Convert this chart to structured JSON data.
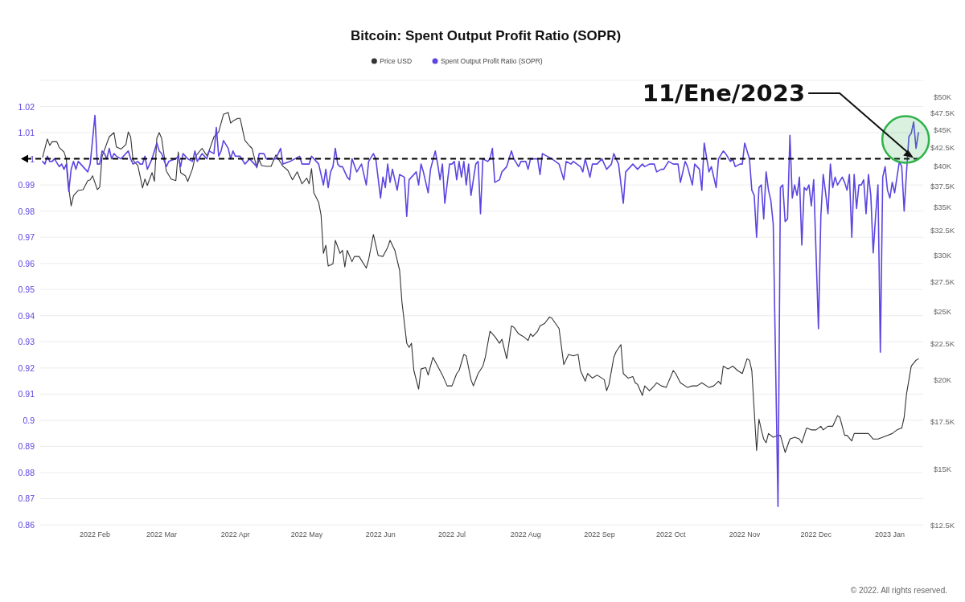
{
  "chart_data": {
    "type": "line",
    "title": "Bitcoin: Spent Output Profit Ratio (SOPR)",
    "xlim": [
      "2022-01-09",
      "2023-01-15"
    ],
    "xticks": [
      {
        "value": "2022-02-01",
        "label": "2022 Feb"
      },
      {
        "value": "2022-03-01",
        "label": "2022 Mar"
      },
      {
        "value": "2022-04-01",
        "label": "2022 Apr"
      },
      {
        "value": "2022-05-01",
        "label": "2022 May"
      },
      {
        "value": "2022-06-01",
        "label": "2022 Jun"
      },
      {
        "value": "2022-07-01",
        "label": "2022 Jul"
      },
      {
        "value": "2022-08-01",
        "label": "2022 Aug"
      },
      {
        "value": "2022-09-01",
        "label": "2022 Sep"
      },
      {
        "value": "2022-10-01",
        "label": "2022 Oct"
      },
      {
        "value": "2022-11-01",
        "label": "2022 Nov"
      },
      {
        "value": "2022-12-01",
        "label": "2022 Dec"
      },
      {
        "value": "2023-01-01",
        "label": "2023 Jan"
      }
    ],
    "ylim": [
      0.86,
      1.03
    ],
    "yticks": [
      0.86,
      0.87,
      0.88,
      0.89,
      0.9,
      0.91,
      0.92,
      0.93,
      0.94,
      0.95,
      0.96,
      0.97,
      0.98,
      0.99,
      1,
      1.01,
      1.02,
      {
        "value": 1.03,
        "label": null
      }
    ],
    "y2lim": [
      12500,
      52700
    ],
    "y2ticks": [
      {
        "value": 12500,
        "label": "$12.5K"
      },
      {
        "value": 15000,
        "label": "$15K"
      },
      {
        "value": 17500,
        "label": "$17.5K"
      },
      {
        "value": 20000,
        "label": "$20K"
      },
      {
        "value": 22500,
        "label": "$22.5K"
      },
      {
        "value": 25000,
        "label": "$25K"
      },
      {
        "value": 27500,
        "label": "$27.5K"
      },
      {
        "value": 30000,
        "label": "$30K"
      },
      {
        "value": 32500,
        "label": "$32.5K"
      },
      {
        "value": 35000,
        "label": "$35K"
      },
      {
        "value": 37500,
        "label": "$37.5K"
      },
      {
        "value": 40000,
        "label": "$40K"
      },
      {
        "value": 42500,
        "label": "$42.5K"
      },
      {
        "value": 45000,
        "label": "$45K"
      },
      {
        "value": 47500,
        "label": "$47.5K"
      },
      {
        "value": 50000,
        "label": "$50K"
      }
    ],
    "log": "y2",
    "grid": "y",
    "legend": "top",
    "series": [
      {
        "name": "Price USD",
        "color": "#333333",
        "axis": "y2",
        "x": [
          "2022-01-10",
          "2022-01-12",
          "2022-01-13",
          "2022-01-14",
          "2022-01-16",
          "2022-01-17",
          "2022-01-19",
          "2022-01-20",
          "2022-01-21",
          "2022-01-22",
          "2022-01-23",
          "2022-01-25",
          "2022-01-27",
          "2022-01-29",
          "2022-01-30",
          "2022-01-31",
          "2022-02-02",
          "2022-02-03",
          "2022-02-04",
          "2022-02-07",
          "2022-02-09",
          "2022-02-10",
          "2022-02-12",
          "2022-02-14",
          "2022-02-15",
          "2022-02-16",
          "2022-02-17",
          "2022-02-19",
          "2022-02-20",
          "2022-02-21",
          "2022-02-22",
          "2022-02-23",
          "2022-02-25",
          "2022-02-26",
          "2022-02-27",
          "2022-02-28",
          "2022-03-01",
          "2022-03-03",
          "2022-03-05",
          "2022-03-07",
          "2022-03-08",
          "2022-03-09",
          "2022-03-11",
          "2022-03-12",
          "2022-03-14",
          "2022-03-15",
          "2022-03-16",
          "2022-03-18",
          "2022-03-20",
          "2022-03-21",
          "2022-03-23",
          "2022-03-25",
          "2022-03-27",
          "2022-03-29",
          "2022-03-30",
          "2022-03-31",
          "2022-04-02",
          "2022-04-03",
          "2022-04-05",
          "2022-04-07",
          "2022-04-08",
          "2022-04-10",
          "2022-04-11",
          "2022-04-12",
          "2022-04-14",
          "2022-04-16",
          "2022-04-18",
          "2022-04-21",
          "2022-04-23",
          "2022-04-25",
          "2022-04-27",
          "2022-04-29",
          "2022-05-01",
          "2022-05-02",
          "2022-05-03",
          "2022-05-04",
          "2022-05-06",
          "2022-05-07",
          "2022-05-08",
          "2022-05-09",
          "2022-05-10",
          "2022-05-12",
          "2022-05-13",
          "2022-05-15",
          "2022-05-16",
          "2022-05-17",
          "2022-05-18",
          "2022-05-20",
          "2022-05-21",
          "2022-05-23",
          "2022-05-26",
          "2022-05-27",
          "2022-05-29",
          "2022-05-31",
          "2022-06-02",
          "2022-06-04",
          "2022-06-05",
          "2022-06-07",
          "2022-06-09",
          "2022-06-10",
          "2022-06-12",
          "2022-06-13",
          "2022-06-14",
          "2022-06-15",
          "2022-06-17",
          "2022-06-18",
          "2022-06-20",
          "2022-06-21",
          "2022-06-23",
          "2022-06-25",
          "2022-06-27",
          "2022-06-29",
          "2022-07-01",
          "2022-07-03",
          "2022-07-04",
          "2022-07-06",
          "2022-07-07",
          "2022-07-09",
          "2022-07-10",
          "2022-07-12",
          "2022-07-14",
          "2022-07-15",
          "2022-07-17",
          "2022-07-19",
          "2022-07-21",
          "2022-07-22",
          "2022-07-24",
          "2022-07-26",
          "2022-07-27",
          "2022-07-29",
          "2022-07-31",
          "2022-08-02",
          "2022-08-03",
          "2022-08-04",
          "2022-08-06",
          "2022-08-07",
          "2022-08-09",
          "2022-08-11",
          "2022-08-12",
          "2022-08-15",
          "2022-08-17",
          "2022-08-19",
          "2022-08-21",
          "2022-08-23",
          "2022-08-24",
          "2022-08-26",
          "2022-08-27",
          "2022-08-29",
          "2022-08-31",
          "2022-09-03",
          "2022-09-04",
          "2022-09-05",
          "2022-09-07",
          "2022-09-08",
          "2022-09-10",
          "2022-09-11",
          "2022-09-13",
          "2022-09-15",
          "2022-09-16",
          "2022-09-17",
          "2022-09-19",
          "2022-09-20",
          "2022-09-22",
          "2022-09-24",
          "2022-09-25",
          "2022-09-27",
          "2022-09-29",
          "2022-10-02",
          "2022-10-03",
          "2022-10-05",
          "2022-10-08",
          "2022-10-10",
          "2022-10-12",
          "2022-10-14",
          "2022-10-17",
          "2022-10-19",
          "2022-10-21",
          "2022-10-22",
          "2022-10-23",
          "2022-10-25",
          "2022-10-27",
          "2022-10-29",
          "2022-10-31",
          "2022-11-02",
          "2022-11-03",
          "2022-11-04",
          "2022-11-05",
          "2022-11-06",
          "2022-11-07",
          "2022-11-08",
          "2022-11-09",
          "2022-11-10",
          "2022-11-11",
          "2022-11-13",
          "2022-11-15",
          "2022-11-16",
          "2022-11-18",
          "2022-11-20",
          "2022-11-22",
          "2022-11-24",
          "2022-11-25",
          "2022-11-27",
          "2022-11-29",
          "2022-12-01",
          "2022-12-03",
          "2022-12-04",
          "2022-12-06",
          "2022-12-08",
          "2022-12-10",
          "2022-12-11",
          "2022-12-13",
          "2022-12-14",
          "2022-12-16",
          "2022-12-17",
          "2022-12-19",
          "2022-12-21",
          "2022-12-23",
          "2022-12-25",
          "2022-12-27",
          "2022-12-29",
          "2022-12-31",
          "2023-01-02",
          "2023-01-04",
          "2023-01-06",
          "2023-01-07",
          "2023-01-08",
          "2023-01-10",
          "2023-01-11",
          "2023-01-12",
          "2023-01-13"
        ],
        "values": [
          41100,
          43600,
          42700,
          43200,
          43200,
          42400,
          41800,
          40800,
          37200,
          35100,
          36300,
          36900,
          37000,
          38100,
          38200,
          38700,
          37000,
          37300,
          41200,
          43900,
          44500,
          42500,
          42200,
          42800,
          44600,
          43900,
          40700,
          40000,
          38600,
          37200,
          38300,
          37500,
          39100,
          38000,
          43700,
          44500,
          43700,
          39300,
          38300,
          38100,
          41800,
          39100,
          38700,
          38000,
          39600,
          41000,
          41500,
          42300,
          41300,
          42000,
          43900,
          44600,
          47200,
          47500,
          45900,
          46200,
          46600,
          46600,
          43400,
          42600,
          42300,
          39700,
          40800,
          40000,
          39900,
          39900,
          41400,
          39900,
          39400,
          38200,
          39200,
          37700,
          38400,
          37700,
          39600,
          36600,
          35500,
          34100,
          30100,
          30900,
          28900,
          29100,
          31400,
          30100,
          30400,
          28800,
          30400,
          29300,
          29800,
          29800,
          28700,
          29500,
          32000,
          29900,
          29800,
          30700,
          31400,
          30400,
          28500,
          25700,
          22500,
          22200,
          22500,
          20600,
          19400,
          20700,
          20800,
          20300,
          21500,
          20900,
          20300,
          19600,
          19600,
          20400,
          20600,
          21700,
          21600,
          20000,
          19600,
          20400,
          20900,
          21500,
          23400,
          23000,
          22500,
          22800,
          21400,
          23800,
          23700,
          23200,
          23000,
          22700,
          23200,
          23000,
          23400,
          23800,
          24000,
          24500,
          24400,
          23600,
          21000,
          21700,
          21600,
          21700,
          20600,
          19900,
          20400,
          20100,
          20300,
          20000,
          19300,
          19700,
          21500,
          21900,
          22400,
          20400,
          20100,
          20200,
          19800,
          19700,
          19000,
          19600,
          19300,
          19600,
          19800,
          19600,
          19500,
          20600,
          20400,
          19800,
          19500,
          19600,
          19600,
          19800,
          19500,
          19600,
          19900,
          19700,
          20900,
          20700,
          20900,
          20600,
          20400,
          21400,
          21300,
          20600,
          18100,
          15900,
          17600,
          17000,
          16500,
          16300,
          16800,
          16600,
          16700,
          16700,
          15800,
          16500,
          16600,
          16500,
          16300,
          17100,
          17000,
          17000,
          17200,
          17000,
          17200,
          17200,
          17800,
          17700,
          16700,
          16700,
          16400,
          16800,
          16800,
          16800,
          16800,
          16500,
          16500,
          16600,
          16700,
          16800,
          17000,
          17100,
          17700,
          19100,
          20900,
          21100,
          21300,
          21400
        ]
      },
      {
        "name": "Spent Output Profit Ratio (SOPR)",
        "color": "#5b45e0",
        "x": [
          "2022-01-10",
          "2022-01-11",
          "2022-01-12",
          "2022-01-13",
          "2022-01-14",
          "2022-01-15",
          "2022-01-17",
          "2022-01-18",
          "2022-01-19",
          "2022-01-20",
          "2022-01-21",
          "2022-01-22",
          "2022-01-23",
          "2022-01-24",
          "2022-01-25",
          "2022-01-27",
          "2022-01-29",
          "2022-01-30",
          "2022-02-01",
          "2022-02-02",
          "2022-02-03",
          "2022-02-04",
          "2022-02-05",
          "2022-02-06",
          "2022-02-07",
          "2022-02-08",
          "2022-02-09",
          "2022-02-10",
          "2022-02-12",
          "2022-02-15",
          "2022-02-16",
          "2022-02-17",
          "2022-02-19",
          "2022-02-20",
          "2022-02-21",
          "2022-02-22",
          "2022-02-23",
          "2022-02-25",
          "2022-02-27",
          "2022-02-28",
          "2022-03-01",
          "2022-03-03",
          "2022-03-04",
          "2022-03-07",
          "2022-03-08",
          "2022-03-09",
          "2022-03-10",
          "2022-03-12",
          "2022-03-14",
          "2022-03-15",
          "2022-03-16",
          "2022-03-18",
          "2022-03-20",
          "2022-03-21",
          "2022-03-23",
          "2022-03-24",
          "2022-03-25",
          "2022-03-26",
          "2022-03-27",
          "2022-03-29",
          "2022-03-30",
          "2022-03-31",
          "2022-04-01",
          "2022-04-03",
          "2022-04-05",
          "2022-04-07",
          "2022-04-10",
          "2022-04-11",
          "2022-04-13",
          "2022-04-14",
          "2022-04-18",
          "2022-04-20",
          "2022-04-21",
          "2022-04-24",
          "2022-04-28",
          "2022-04-29",
          "2022-05-02",
          "2022-05-03",
          "2022-05-06",
          "2022-05-08",
          "2022-05-09",
          "2022-05-10",
          "2022-05-11",
          "2022-05-12",
          "2022-05-13",
          "2022-05-14",
          "2022-05-15",
          "2022-05-16",
          "2022-05-18",
          "2022-05-19",
          "2022-05-20",
          "2022-05-22",
          "2022-05-24",
          "2022-05-26",
          "2022-05-27",
          "2022-05-29",
          "2022-05-30",
          "2022-06-01",
          "2022-06-02",
          "2022-06-03",
          "2022-06-04",
          "2022-06-05",
          "2022-06-06",
          "2022-06-08",
          "2022-06-09",
          "2022-06-11",
          "2022-06-12",
          "2022-06-13",
          "2022-06-15",
          "2022-06-16",
          "2022-06-17",
          "2022-06-18",
          "2022-06-19",
          "2022-06-21",
          "2022-06-22",
          "2022-06-24",
          "2022-06-25",
          "2022-06-26",
          "2022-06-27",
          "2022-06-28",
          "2022-06-30",
          "2022-07-01",
          "2022-07-02",
          "2022-07-03",
          "2022-07-04",
          "2022-07-05",
          "2022-07-06",
          "2022-07-07",
          "2022-07-08",
          "2022-07-09",
          "2022-07-11",
          "2022-07-12",
          "2022-07-13",
          "2022-07-14",
          "2022-07-16",
          "2022-07-17",
          "2022-07-18",
          "2022-07-19",
          "2022-07-21",
          "2022-07-22",
          "2022-07-24",
          "2022-07-25",
          "2022-07-26",
          "2022-07-27",
          "2022-07-29",
          "2022-07-30",
          "2022-08-01",
          "2022-08-02",
          "2022-08-03",
          "2022-08-06",
          "2022-08-07",
          "2022-08-08",
          "2022-08-10",
          "2022-08-12",
          "2022-08-15",
          "2022-08-17",
          "2022-08-18",
          "2022-08-20",
          "2022-08-21",
          "2022-08-24",
          "2022-08-25",
          "2022-08-26",
          "2022-08-28",
          "2022-08-29",
          "2022-08-31",
          "2022-09-02",
          "2022-09-04",
          "2022-09-06",
          "2022-09-07",
          "2022-09-08",
          "2022-09-09",
          "2022-09-11",
          "2022-09-12",
          "2022-09-13",
          "2022-09-15",
          "2022-09-17",
          "2022-09-19",
          "2022-09-20",
          "2022-09-22",
          "2022-09-24",
          "2022-09-25",
          "2022-09-27",
          "2022-09-28",
          "2022-09-30",
          "2022-10-02",
          "2022-10-04",
          "2022-10-05",
          "2022-10-07",
          "2022-10-08",
          "2022-10-10",
          "2022-10-11",
          "2022-10-13",
          "2022-10-14",
          "2022-10-15",
          "2022-10-17",
          "2022-10-18",
          "2022-10-20",
          "2022-10-21",
          "2022-10-23",
          "2022-10-24",
          "2022-10-26",
          "2022-10-27",
          "2022-10-28",
          "2022-10-30",
          "2022-10-31",
          "2022-11-01",
          "2022-11-03",
          "2022-11-04",
          "2022-11-05",
          "2022-11-06",
          "2022-11-07",
          "2022-11-08",
          "2022-11-09",
          "2022-11-10",
          "2022-11-11",
          "2022-11-12",
          "2022-11-13",
          "2022-11-15",
          "2022-11-16",
          "2022-11-17",
          "2022-11-18",
          "2022-11-19",
          "2022-11-20",
          "2022-11-21",
          "2022-11-22",
          "2022-11-23",
          "2022-11-24",
          "2022-11-25",
          "2022-11-26",
          "2022-11-27",
          "2022-11-28",
          "2022-11-29",
          "2022-11-30",
          "2022-12-02",
          "2022-12-03",
          "2022-12-04",
          "2022-12-05",
          "2022-12-06",
          "2022-12-07",
          "2022-12-08",
          "2022-12-09",
          "2022-12-10",
          "2022-12-12",
          "2022-12-13",
          "2022-12-14",
          "2022-12-15",
          "2022-12-16",
          "2022-12-17",
          "2022-12-18",
          "2022-12-19",
          "2022-12-20",
          "2022-12-21",
          "2022-12-22",
          "2022-12-23",
          "2022-12-24",
          "2022-12-25",
          "2022-12-26",
          "2022-12-27",
          "2022-12-28",
          "2022-12-29",
          "2022-12-30",
          "2022-12-31",
          "2023-01-01",
          "2023-01-02",
          "2023-01-03",
          "2023-01-04",
          "2023-01-05",
          "2023-01-06",
          "2023-01-07",
          "2023-01-08",
          "2023-01-09",
          "2023-01-10",
          "2023-01-11",
          "2023-01-12",
          "2023-01-13"
        ],
        "values": [
          0.999,
          0.998,
          1.001,
          0.999,
          0.999,
          1.0,
          0.997,
          0.998,
          0.996,
          0.998,
          0.9875,
          0.996,
          0.999,
          0.996,
          0.999,
          0.997,
          0.995,
          0.998,
          1.0166,
          0.998,
          0.998,
          1.003,
          1.002,
          1.0,
          1.004,
          1.0,
          1.002,
          1.001,
          1.0,
          1.003,
          1.0,
          0.998,
          0.999,
          0.998,
          0.998,
          1.001,
          0.996,
          1.0,
          1.006,
          1.003,
          1.002,
          0.997,
          0.999,
          1.0,
          1.001,
          0.997,
          1.002,
          1.0,
          0.999,
          1.003,
          0.999,
          1.002,
          1.0,
          1.003,
          1.002,
          1.012,
          1.001,
          1.003,
          1.007,
          1.004,
          1.0,
          1.003,
          1.001,
          1.001,
          0.998,
          1.0,
          0.997,
          1.002,
          1.002,
          1.0,
          1.0,
          1.004,
          0.998,
          0.999,
          1.001,
          0.998,
          0.998,
          1.001,
          0.998,
          0.99,
          0.996,
          0.989,
          0.995,
          0.997,
          1.004,
          0.998,
          0.997,
          0.997,
          0.993,
          0.992,
          1.0,
          0.995,
          0.998,
          0.99,
          0.999,
          1.002,
          1.0,
          0.985,
          0.993,
          0.989,
          0.998,
          0.991,
          0.996,
          0.988,
          0.994,
          0.993,
          0.978,
          0.992,
          0.994,
          0.995,
          0.99,
          0.998,
          0.995,
          0.987,
          0.996,
          1.003,
          0.998,
          0.992,
          0.998,
          0.983,
          0.998,
          0.998,
          0.999,
          0.992,
          0.999,
          0.993,
          0.999,
          0.99,
          0.998,
          0.986,
          0.998,
          0.999,
          0.979,
          1.0,
          0.999,
          1.0,
          1.004,
          0.991,
          0.992,
          0.995,
          0.997,
          1.0,
          1.003,
          1.0,
          0.997,
          0.999,
          0.999,
          0.996,
          1.0,
          1.0,
          0.994,
          1.002,
          1.001,
          1.0,
          0.998,
          0.992,
          0.999,
          0.998,
          0.999,
          0.997,
          0.995,
          1.0,
          0.993,
          0.998,
          0.998,
          1.0,
          0.996,
          0.998,
          1.002,
          1.0,
          0.998,
          0.983,
          0.995,
          0.996,
          0.998,
          0.996,
          0.998,
          0.997,
          0.998,
          0.998,
          0.995,
          0.996,
          0.996,
          0.999,
          0.998,
          0.998,
          0.991,
          0.999,
          0.997,
          0.99,
          0.998,
          0.996,
          0.988,
          1.006,
          0.995,
          0.997,
          0.989,
          1.0,
          1.003,
          1.002,
          0.999,
          1.0,
          0.997,
          0.998,
          0.998,
          1.006,
          1.0,
          0.988,
          0.986,
          0.97,
          0.989,
          0.99,
          0.977,
          0.995,
          0.988,
          0.984,
          0.975,
          0.867,
          0.989,
          0.99,
          0.976,
          0.977,
          1.009,
          0.985,
          0.99,
          0.986,
          0.993,
          0.967,
          0.989,
          0.988,
          0.99,
          0.982,
          0.992,
          0.935,
          0.978,
          0.994,
          0.987,
          0.979,
          0.998,
          0.989,
          0.993,
          0.99,
          0.993,
          0.991,
          0.988,
          0.994,
          0.97,
          0.994,
          0.981,
          0.99,
          0.99,
          0.992,
          0.979,
          0.994,
          0.986,
          0.964,
          0.978,
          0.99,
          0.926,
          0.993,
          0.997,
          0.988,
          0.985,
          0.991,
          0.987,
          0.993,
          0.999,
          0.997,
          0.98,
          0.995,
          1.0085,
          1.0098,
          1.0141,
          1.004,
          1.01
        ]
      }
    ],
    "ref_lines": [
      {
        "axis": "y",
        "value": 1,
        "color": "#000000",
        "line_style": "dashed"
      }
    ],
    "annotations": [
      {
        "text": "11/Ene/2023",
        "x": "2023-01-11",
        "y": 1.0
      },
      "© 2022. All rights reserved."
    ]
  }
}
